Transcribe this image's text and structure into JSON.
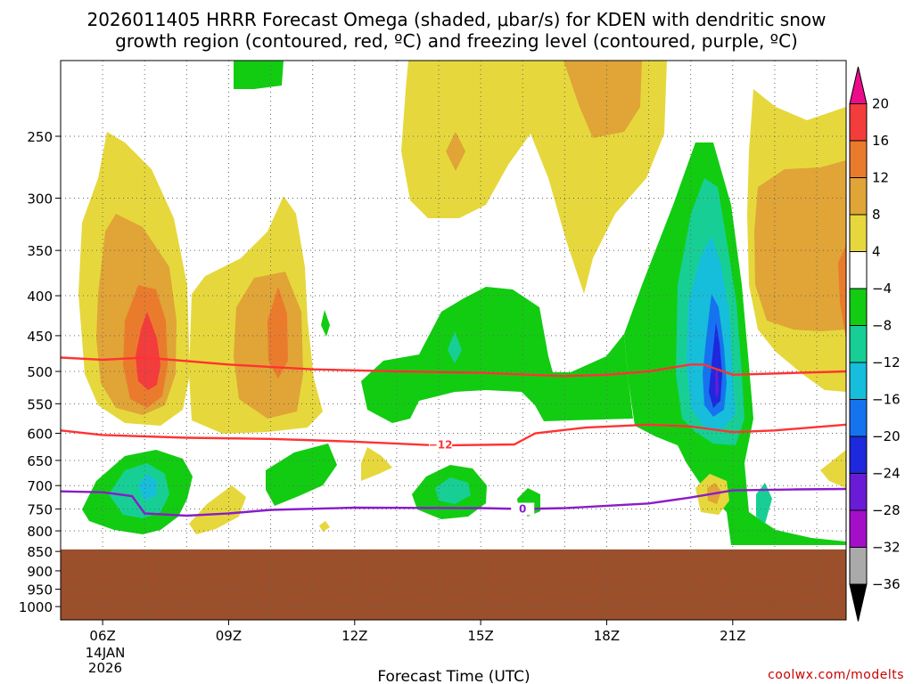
{
  "chart_data": {
    "type": "heatmap",
    "title_line1": "2026011405 HRRR Forecast Omega (shaded, μbar/s) for KDEN with dendritic snow",
    "title_line2": "growth region (contoured, red, ºC) and freezing level (contoured, purple, ºC)",
    "xlabel": "Forecast Time (UTC)",
    "date_label": [
      "14JAN",
      "2026"
    ],
    "credit": "coolwx.com/modelts",
    "x_ticks": [
      {
        "hour": 6,
        "label": "06Z"
      },
      {
        "hour": 9,
        "label": "09Z"
      },
      {
        "hour": 12,
        "label": "12Z"
      },
      {
        "hour": 15,
        "label": "15Z"
      },
      {
        "hour": 18,
        "label": "18Z"
      },
      {
        "hour": 21,
        "label": "21Z"
      }
    ],
    "x_range": [
      5,
      23.7
    ],
    "y_ticks": [
      "250",
      "300",
      "350",
      "400",
      "450",
      "500",
      "550",
      "600",
      "650",
      "700",
      "750",
      "800",
      "850",
      "900",
      "950",
      "1000"
    ],
    "y_scale": "log-pressure",
    "y_range_hpa": [
      200,
      1040
    ],
    "ground_level_hpa": 845,
    "ground_color": "#9b4f2a",
    "colorbar": {
      "labels": [
        "20",
        "16",
        "12",
        "8",
        "4",
        "−4",
        "−8",
        "−12",
        "−16",
        "−20",
        "−24",
        "−28",
        "−32",
        "−36"
      ],
      "colors": [
        "#ec0c8a",
        "#f33c3c",
        "#ea7b2c",
        "#e0a437",
        "#e6d83c",
        "#ffffff",
        "#12cc12",
        "#17cf95",
        "#16bedb",
        "#1673ef",
        "#1e28dc",
        "#6a1bd6",
        "#a50ec8",
        "#aaaaaa",
        "#000000"
      ]
    },
    "contours": [
      {
        "name": "dgz-upper",
        "color": "#ff3333",
        "label": "",
        "points": [
          [
            5,
            480
          ],
          [
            6,
            483
          ],
          [
            7,
            480
          ],
          [
            9,
            490
          ],
          [
            11,
            497
          ],
          [
            13,
            500
          ],
          [
            15,
            502
          ],
          [
            17,
            507
          ],
          [
            18,
            505
          ],
          [
            19,
            500
          ],
          [
            20,
            490
          ],
          [
            20.3,
            490
          ],
          [
            21,
            505
          ],
          [
            23.7,
            500
          ]
        ]
      },
      {
        "name": "dgz-lower",
        "color": "#ff3333",
        "label": "−12",
        "points": [
          [
            5,
            595
          ],
          [
            6,
            603
          ],
          [
            8,
            608
          ],
          [
            10,
            610
          ],
          [
            12,
            615
          ],
          [
            14,
            622
          ],
          [
            15.8,
            620
          ],
          [
            16.3,
            600
          ],
          [
            17.5,
            590
          ],
          [
            19,
            585
          ],
          [
            20,
            588
          ],
          [
            21,
            598
          ],
          [
            22,
            595
          ],
          [
            23.7,
            585
          ]
        ]
      },
      {
        "name": "freezing-level",
        "color": "#8a1cc8",
        "label": "0",
        "points": [
          [
            5,
            712
          ],
          [
            6,
            714
          ],
          [
            6.7,
            722
          ],
          [
            7,
            760
          ],
          [
            8,
            765
          ],
          [
            9,
            760
          ],
          [
            10,
            752
          ],
          [
            12,
            747
          ],
          [
            15,
            748
          ],
          [
            16,
            750
          ],
          [
            17,
            748
          ],
          [
            19,
            738
          ],
          [
            20,
            725
          ],
          [
            21,
            710
          ],
          [
            22.5,
            708
          ],
          [
            23.7,
            707
          ]
        ]
      }
    ]
  }
}
